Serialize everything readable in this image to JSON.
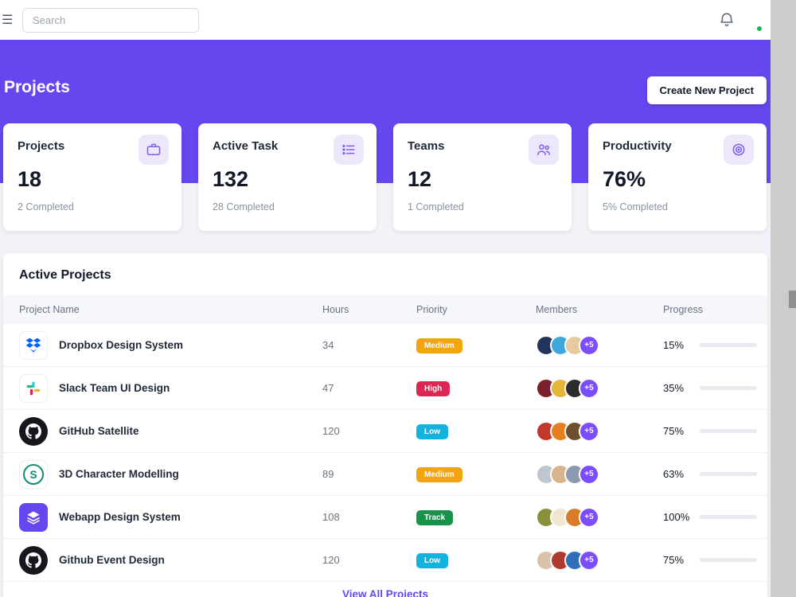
{
  "topbar": {
    "search_placeholder": "Search"
  },
  "hero": {
    "title": "Projects",
    "create_button": "Create New Project"
  },
  "stats": [
    {
      "label": "Projects",
      "value": "18",
      "completed": "2 Completed",
      "icon": "briefcase-icon"
    },
    {
      "label": "Active Task",
      "value": "132",
      "completed": "28 Completed",
      "icon": "list-icon"
    },
    {
      "label": "Teams",
      "value": "12",
      "completed": "1 Completed",
      "icon": "users-icon"
    },
    {
      "label": "Productivity",
      "value": "76%",
      "completed": "5% Completed",
      "icon": "target-icon"
    }
  ],
  "projects_table": {
    "title": "Active Projects",
    "headers": [
      "Project Name",
      "Hours",
      "Priority",
      "Members",
      "Progress"
    ],
    "rows": [
      {
        "name": "Dropbox Design System",
        "icon": "dropbox-icon",
        "hours": "34",
        "priority": "Medium",
        "members_more": "+5",
        "progress": 15,
        "progress_label": "15%",
        "avatar_colors": [
          "#22335c",
          "#3fa7dc",
          "#e8c9a0"
        ]
      },
      {
        "name": "Slack Team UI Design",
        "icon": "slack-icon",
        "hours": "47",
        "priority": "High",
        "members_more": "+5",
        "progress": 35,
        "progress_label": "35%",
        "avatar_colors": [
          "#7a1f2b",
          "#e4b63c",
          "#2b2b2b"
        ]
      },
      {
        "name": "GitHub Satellite",
        "icon": "github-icon",
        "hours": "120",
        "priority": "Low",
        "members_more": "+5",
        "progress": 75,
        "progress_label": "75%",
        "avatar_colors": [
          "#c0392b",
          "#e67e22",
          "#6b4f2f"
        ]
      },
      {
        "name": "3D Character Modelling",
        "icon": "ring-s-icon",
        "hours": "89",
        "priority": "Medium",
        "members_more": "+5",
        "progress": 63,
        "progress_label": "63%",
        "avatar_colors": [
          "#bfc6cf",
          "#d9b38c",
          "#8d99ae"
        ]
      },
      {
        "name": "Webapp Design System",
        "icon": "layers-icon",
        "hours": "108",
        "priority": "Track",
        "members_more": "+5",
        "progress": 100,
        "progress_label": "100%",
        "avatar_colors": [
          "#8a8f3c",
          "#f0e6d2",
          "#d97b29"
        ]
      },
      {
        "name": "Github Event Design",
        "icon": "github-icon",
        "hours": "120",
        "priority": "Low",
        "members_more": "+5",
        "progress": 75,
        "progress_label": "75%",
        "avatar_colors": [
          "#d9c2a7",
          "#b03a2e",
          "#2e6fba"
        ]
      }
    ],
    "view_all": "View All Projects"
  },
  "badge_colors": {
    "Medium": "#f2a60c",
    "High": "#dc2653",
    "Low": "#12b3dc",
    "Track": "#17934c"
  },
  "colors": {
    "primary": "#6646ee",
    "progress_fill": "#7c4dff"
  }
}
